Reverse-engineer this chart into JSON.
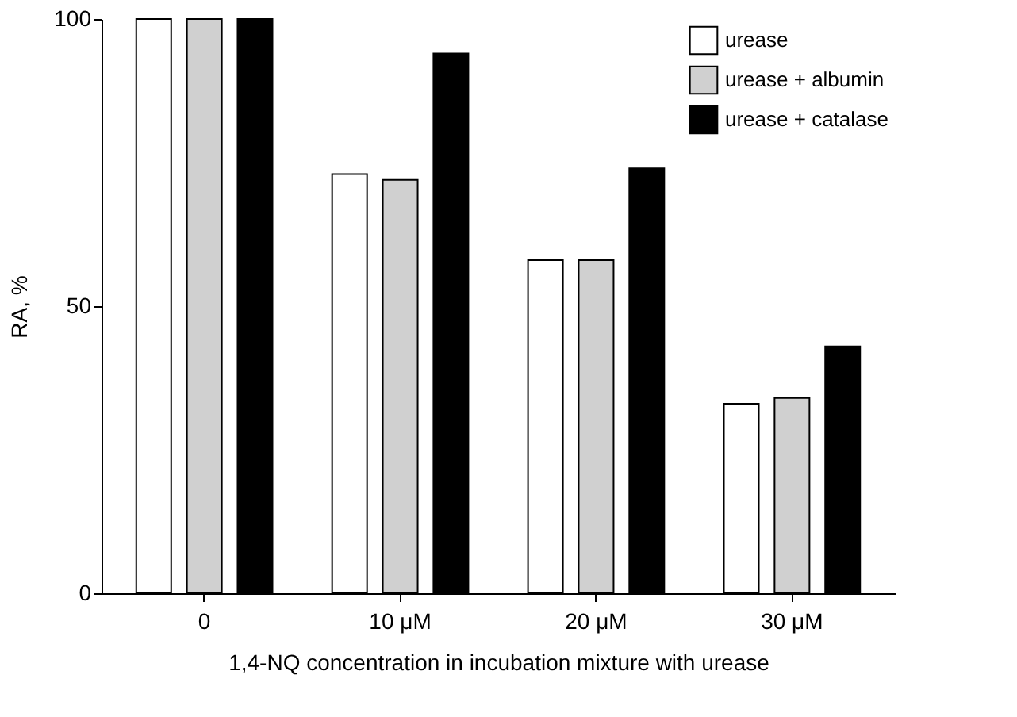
{
  "chart_data": {
    "type": "bar",
    "xlabel": "1,4-NQ concentration in incubation mixture with urease",
    "ylabel": "RA, %",
    "categories": [
      "0",
      "10 μM",
      "20 μM",
      "30 μM"
    ],
    "series": [
      {
        "name": "urease",
        "color": "#ffffff",
        "values": [
          100,
          73,
          58,
          33
        ]
      },
      {
        "name": "urease + albumin",
        "color": "#d0d0d0",
        "values": [
          100,
          72,
          58,
          34
        ]
      },
      {
        "name": "urease + catalase",
        "color": "#000000",
        "values": [
          100,
          94,
          74,
          43
        ]
      }
    ],
    "ylim": [
      0,
      100
    ],
    "yticks": [
      0,
      50,
      100
    ],
    "grid": false,
    "legend": "top right"
  }
}
